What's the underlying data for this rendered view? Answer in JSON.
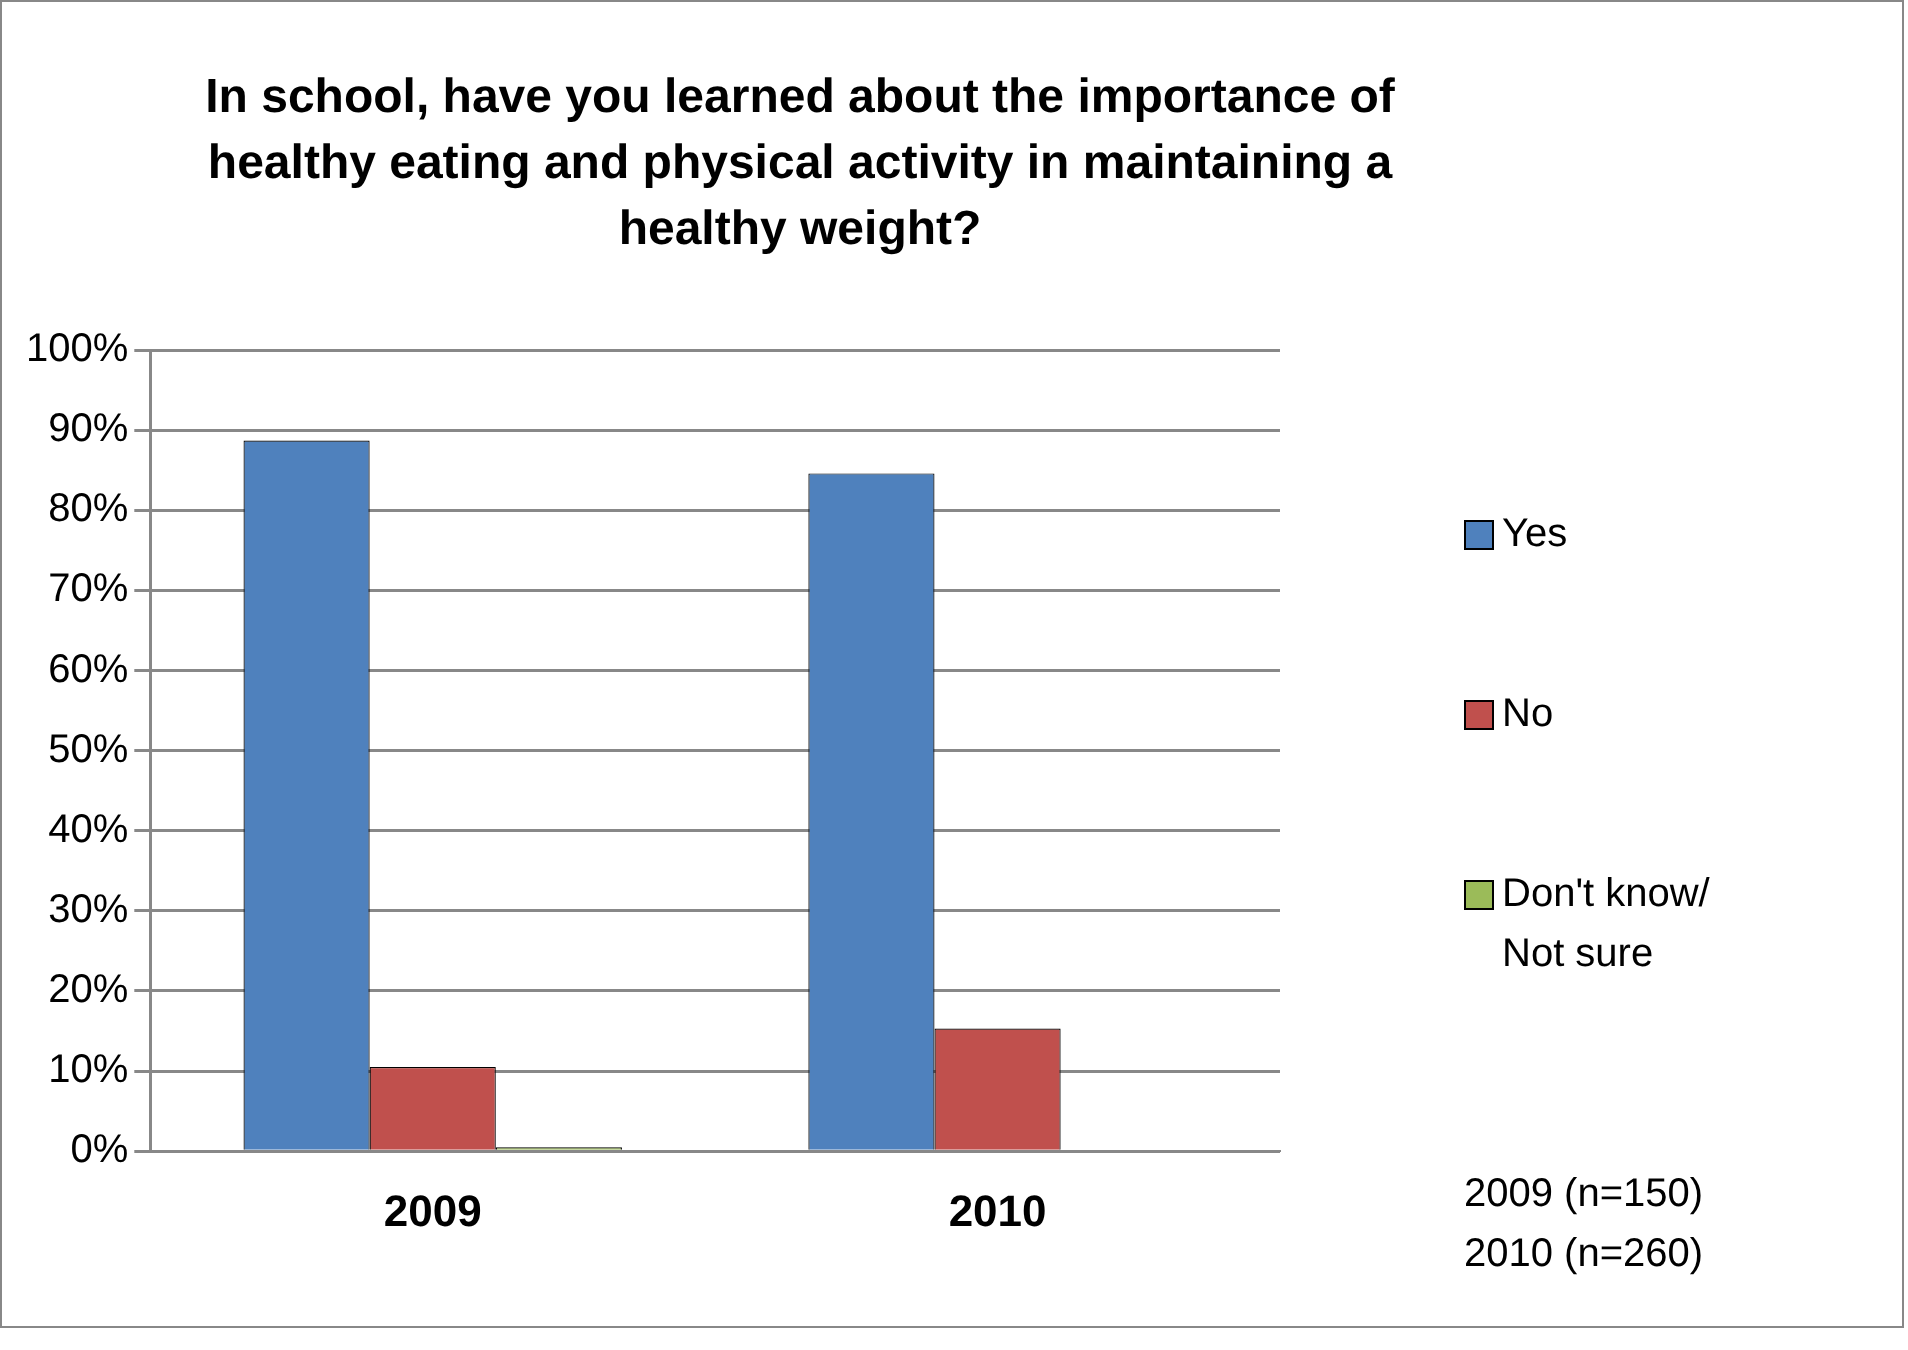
{
  "chart_data": {
    "type": "bar",
    "title": "In school, have you learned about the importance of healthy eating and physical activity in maintaining a healthy weight?",
    "categories": [
      "2009",
      "2010"
    ],
    "series": [
      {
        "name": "Yes",
        "color": "#4f81bd",
        "values": [
          88.7,
          84.6
        ]
      },
      {
        "name": "No",
        "color": "#c0504d",
        "values": [
          10.5,
          15.3
        ]
      },
      {
        "name": "Don't know/ Not sure",
        "color": "#9bbb59",
        "values": [
          0.5,
          0
        ]
      }
    ],
    "ylim": [
      0,
      100
    ],
    "yticks": [
      {
        "value": 0,
        "label": "0%"
      },
      {
        "value": 10,
        "label": "10%"
      },
      {
        "value": 20,
        "label": "20%"
      },
      {
        "value": 30,
        "label": "30%"
      },
      {
        "value": 40,
        "label": "40%"
      },
      {
        "value": 50,
        "label": "50%"
      },
      {
        "value": 60,
        "label": "60%"
      },
      {
        "value": 70,
        "label": "70%"
      },
      {
        "value": 80,
        "label": "80%"
      },
      {
        "value": 90,
        "label": "90%"
      },
      {
        "value": 100,
        "label": "100%"
      }
    ],
    "grid": "y",
    "legend": "right",
    "annotations": [
      "2009 (n=150)",
      "2010 (n=260)"
    ]
  }
}
